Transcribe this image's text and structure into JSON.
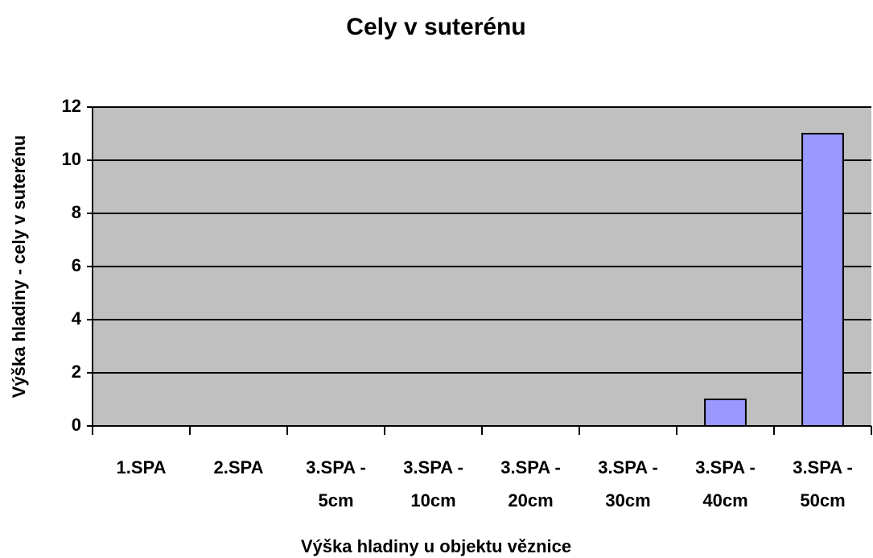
{
  "chart_data": {
    "type": "bar",
    "title": "Cely v suterénu",
    "x_label": "Výška hladiny u objektu věznice",
    "y_label": "Výška hladiny - cely v suterénu",
    "categories": [
      "1.SPA",
      "2.SPA",
      "3.SPA - 5cm",
      "3.SPA - 10cm",
      "3.SPA - 20cm",
      "3.SPA - 30cm",
      "3.SPA - 40cm",
      "3.SPA - 50cm"
    ],
    "values": [
      0,
      0,
      0,
      0,
      0,
      0,
      1,
      11
    ],
    "color": "#9999ff",
    "plot_background": "#c0c0c0",
    "ylim": [
      0,
      12
    ],
    "yticks": [
      0,
      2,
      4,
      6,
      8,
      10,
      12
    ],
    "grid": true
  }
}
